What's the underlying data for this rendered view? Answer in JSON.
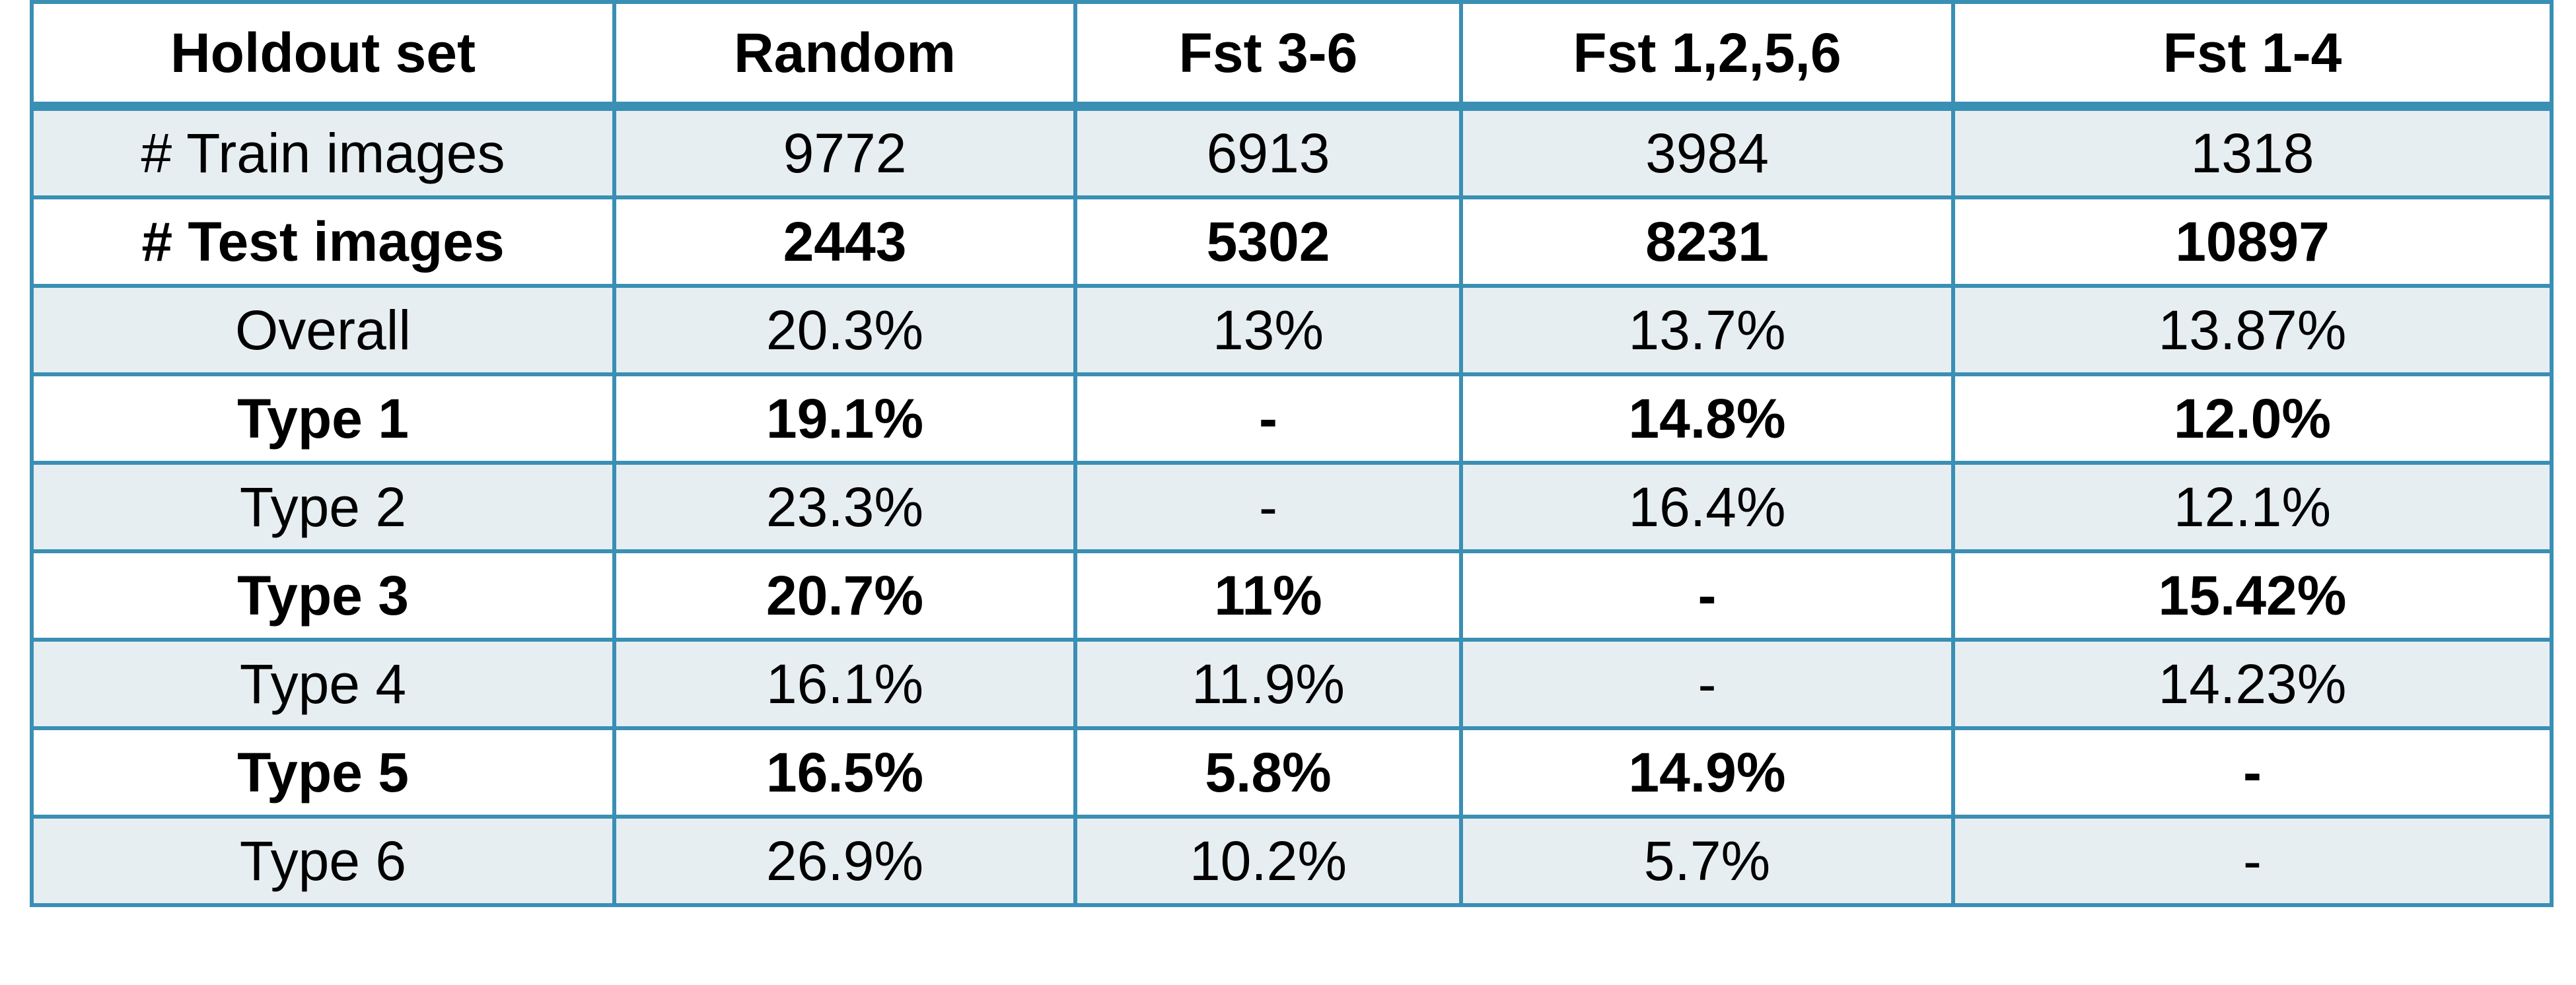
{
  "table": {
    "headers": [
      "Holdout set",
      "Random",
      "Fst 3-6",
      "Fst 1,2,5,6",
      "Fst 1-4"
    ],
    "rows": [
      {
        "label": "# Train images",
        "values": [
          "9772",
          "6913",
          "3984",
          "1318"
        ]
      },
      {
        "label": "# Test images",
        "values": [
          "2443",
          "5302",
          "8231",
          "10897"
        ]
      },
      {
        "label": "Overall",
        "values": [
          "20.3%",
          "13%",
          "13.7%",
          "13.87%"
        ]
      },
      {
        "label": "Type 1",
        "values": [
          "19.1%",
          "-",
          "14.8%",
          "12.0%"
        ]
      },
      {
        "label": "Type 2",
        "values": [
          "23.3%",
          "-",
          "16.4%",
          "12.1%"
        ]
      },
      {
        "label": "Type 3",
        "values": [
          "20.7%",
          "11%",
          "-",
          "15.42%"
        ]
      },
      {
        "label": "Type 4",
        "values": [
          "16.1%",
          "11.9%",
          "-",
          "14.23%"
        ]
      },
      {
        "label": "Type 5",
        "values": [
          "16.5%",
          "5.8%",
          "14.9%",
          "-"
        ]
      },
      {
        "label": "Type 6",
        "values": [
          "26.9%",
          "10.2%",
          "5.7%",
          "-"
        ]
      }
    ]
  },
  "colors": {
    "border": "#3a8fb4",
    "shaded_row": "#e7eef1",
    "plain_row": "#ffffff"
  }
}
